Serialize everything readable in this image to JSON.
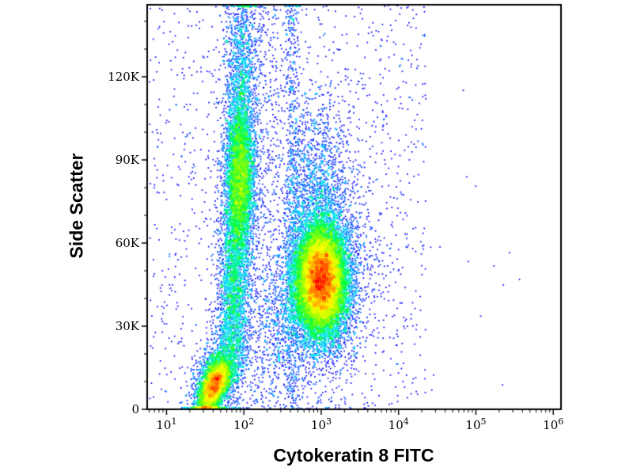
{
  "figure": {
    "background": "#ffffff",
    "frame_color": "#000000",
    "tick_color": "#000000",
    "text_color": "#000000"
  },
  "chart_data": {
    "type": "scatter",
    "subtype": "flow-cytometry-pseudocolor-density-dot-plot",
    "title": "",
    "xlabel": "Cytokeratin 8 FITC",
    "ylabel": "Side Scatter",
    "x_scale": "log10",
    "x_range_log10": [
      0.75,
      6.1
    ],
    "y_range": [
      0,
      146000
    ],
    "grid": "off",
    "legend": "none",
    "x_ticks": [
      {
        "base": "10",
        "exp": "1",
        "value": 10
      },
      {
        "base": "10",
        "exp": "2",
        "value": 100
      },
      {
        "base": "10",
        "exp": "3",
        "value": 1000
      },
      {
        "base": "10",
        "exp": "4",
        "value": 10000
      },
      {
        "base": "10",
        "exp": "5",
        "value": 100000
      },
      {
        "base": "10",
        "exp": "6",
        "value": 1000000
      }
    ],
    "y_ticks": [
      {
        "label": "0",
        "value": 0
      },
      {
        "label": "30K",
        "value": 30000
      },
      {
        "label": "60K",
        "value": 60000
      },
      {
        "label": "90K",
        "value": 90000
      },
      {
        "label": "120K",
        "value": 120000
      }
    ],
    "y_minor_tick_interval": 10000,
    "x_minor_ticks": "log-decade-subdivisions",
    "density_colormap": [
      {
        "t": 0.0,
        "color": "#00008f"
      },
      {
        "t": 0.16,
        "color": "#0000ff"
      },
      {
        "t": 0.4,
        "color": "#00e5ff"
      },
      {
        "t": 0.55,
        "color": "#00ff40"
      },
      {
        "t": 0.7,
        "color": "#aaff00"
      },
      {
        "t": 0.8,
        "color": "#ffff00"
      },
      {
        "t": 0.9,
        "color": "#ff8000"
      },
      {
        "t": 1.0,
        "color": "#ff0000"
      }
    ],
    "populations": [
      {
        "name": "ck8-positive-main",
        "type": "gauss",
        "n": 16000,
        "cx": 3.0,
        "sx": 0.155,
        "cy": 46500,
        "sy": 9000
      },
      {
        "name": "ck8-positive-halo",
        "type": "gauss",
        "n": 3200,
        "cx": 3.0,
        "sx": 0.24,
        "cy": 47000,
        "sy": 15000
      },
      {
        "name": "ck8-positive-wide-scatter",
        "type": "gauss",
        "n": 650,
        "cx": 3.05,
        "sx": 0.42,
        "cy": 50000,
        "sy": 22000
      },
      {
        "name": "ck8-positive-high-ssc",
        "type": "gauss",
        "n": 1500,
        "cx": 2.97,
        "sx": 0.2,
        "cy": 76000,
        "sy": 19000
      },
      {
        "name": "bridge-low-ssc",
        "type": "gauss",
        "n": 600,
        "cx": 2.56,
        "sx": 0.22,
        "cy": 30000,
        "sy": 13000
      },
      {
        "name": "negative-streak-high-ssc",
        "type": "gauss",
        "n": 5200,
        "cx": 1.95,
        "sx": 0.095,
        "cy": 84000,
        "sy": 15000
      },
      {
        "name": "negative-streak-top",
        "type": "gauss",
        "n": 1000,
        "cx": 1.97,
        "sx": 0.105,
        "cy": 124000,
        "sy": 15000
      },
      {
        "name": "negative-streak-mid",
        "type": "gauss",
        "n": 2400,
        "cx": 1.87,
        "sx": 0.1,
        "cy": 43000,
        "sy": 17000
      },
      {
        "name": "negative-low-ssc-blob",
        "type": "gauss",
        "n": 4200,
        "cx": 1.62,
        "sx": 0.105,
        "cy": 8800,
        "sy": 4800,
        "corr": 0.55
      },
      {
        "name": "negative-low-ssc-halo",
        "type": "gauss",
        "n": 1400,
        "cx": 1.66,
        "sx": 0.16,
        "cy": 12000,
        "sy": 8500,
        "corr": 0.4
      },
      {
        "name": "debris-streak",
        "type": "xgauss_yuniform",
        "n": 640,
        "cx": 2.63,
        "sx": 0.05,
        "y0": 1000,
        "y1": 152000
      },
      {
        "name": "between-streaks-scatter",
        "type": "xgauss_yuniform",
        "n": 500,
        "cx": 2.25,
        "sx": 0.17,
        "y0": 0,
        "y1": 146000
      },
      {
        "name": "background-noise",
        "type": "uniform",
        "n": 1400,
        "x0": 0.78,
        "x1": 4.35,
        "y0": 0,
        "y1": 146000
      },
      {
        "name": "far-right-noise",
        "type": "uniform",
        "n": 14,
        "x0": 4.35,
        "x1": 5.7,
        "y0": 5000,
        "y1": 120000
      }
    ]
  }
}
